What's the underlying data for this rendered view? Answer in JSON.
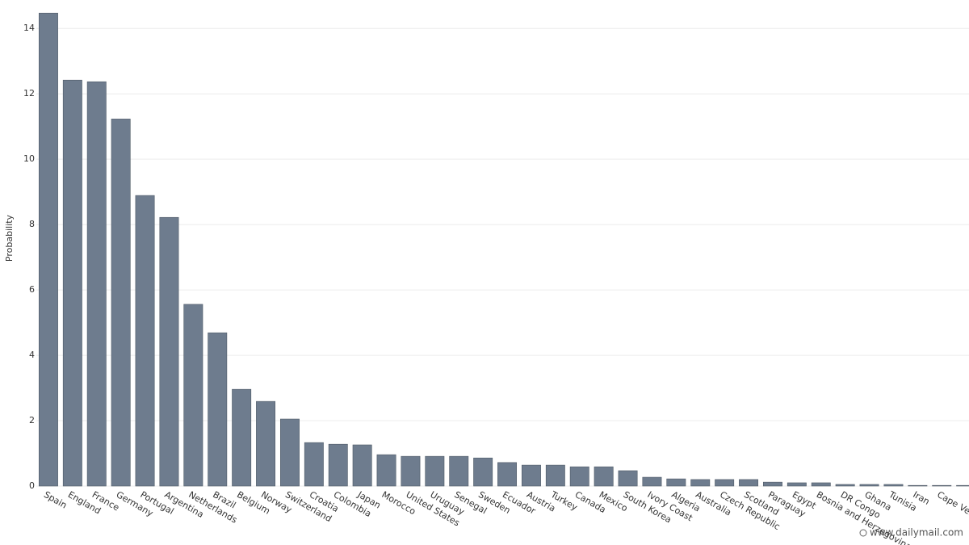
{
  "chart_data": {
    "type": "bar",
    "y_label": "Probability",
    "categories": [
      "Spain",
      "England",
      "France",
      "Germany",
      "Portugal",
      "Argentina",
      "Netherlands",
      "Brazil",
      "Belgium",
      "Norway",
      "Switzerland",
      "Croatia",
      "Colombia",
      "Japan",
      "Morocco",
      "United States",
      "Uruguay",
      "Senegal",
      "Sweden",
      "Ecuador",
      "Austria",
      "Turkey",
      "Canada",
      "Mexico",
      "South Korea",
      "Ivory Coast",
      "Algeria",
      "Australia",
      "Czech Republic",
      "Scotland",
      "Paraguay",
      "Egypt",
      "Bosnia and Herzegovina",
      "DR Congo",
      "Ghana",
      "Tunisia",
      "Iran",
      "Cape Verde",
      null
    ],
    "values": [
      14.47,
      12.42,
      12.37,
      11.23,
      8.89,
      8.22,
      5.56,
      4.69,
      2.96,
      2.59,
      2.05,
      1.33,
      1.28,
      1.26,
      0.96,
      0.91,
      0.91,
      0.91,
      0.86,
      0.72,
      0.64,
      0.64,
      0.59,
      0.59,
      0.47,
      0.27,
      0.22,
      0.2,
      0.2,
      0.2,
      0.12,
      0.1,
      0.1,
      0.05,
      0.05,
      0.05,
      0.02,
      0.02,
      0.02
    ],
    "color": "#6e7c8e",
    "ylim": [
      0,
      14.5
    ],
    "yticks": [
      0,
      2,
      4,
      6,
      8,
      10,
      12,
      14
    ],
    "grid": true,
    "watermark": "www.dailymail.com"
  }
}
